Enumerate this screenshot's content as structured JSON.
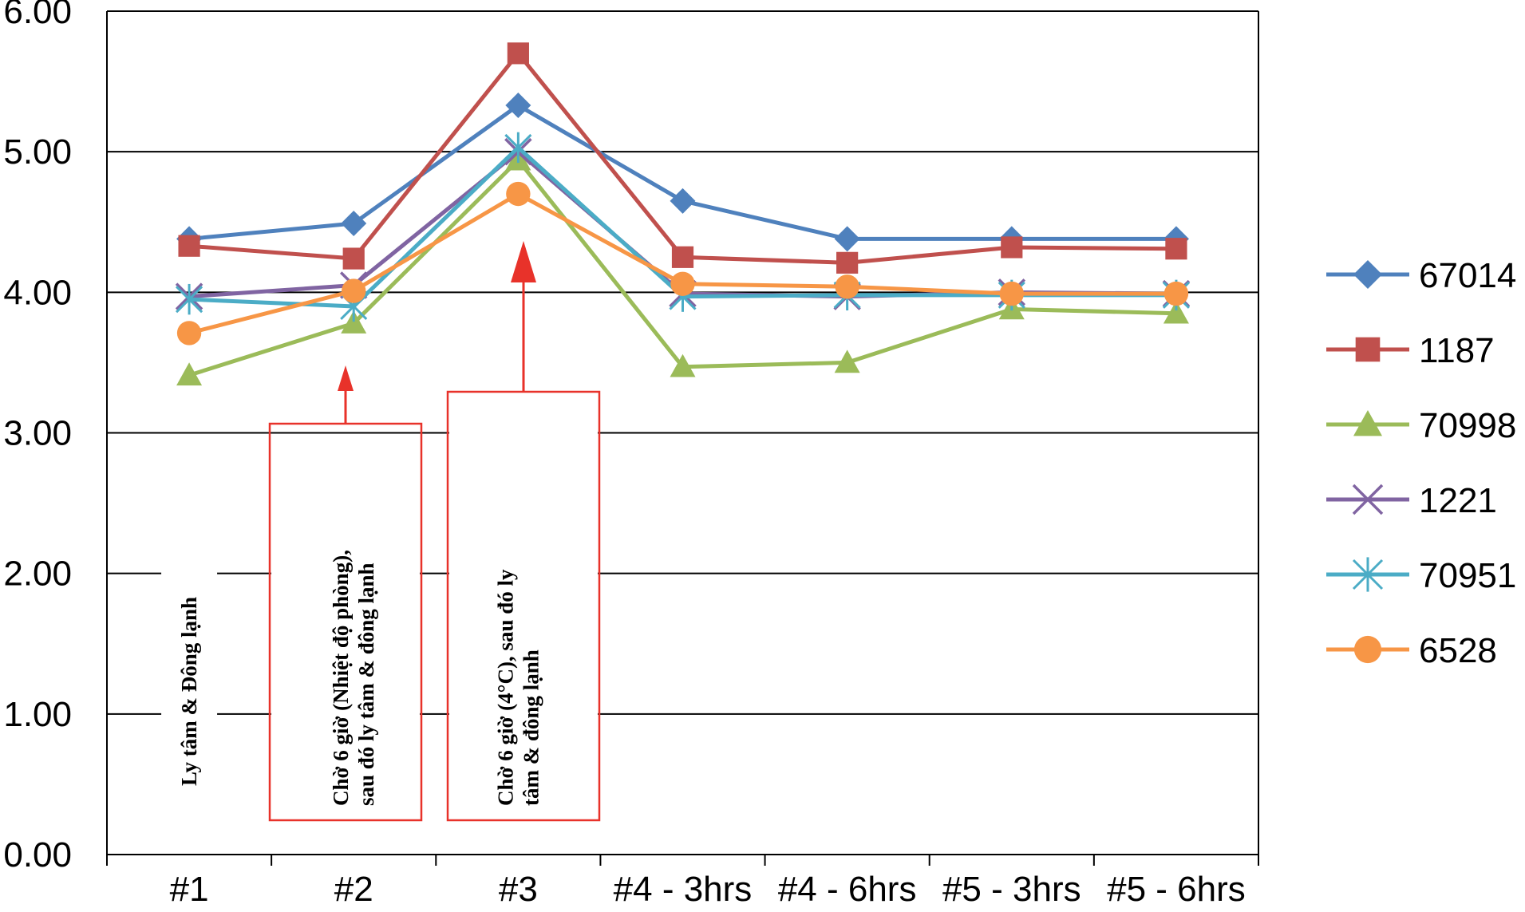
{
  "chart_data": {
    "type": "line",
    "categories": [
      "#1",
      "#2",
      "#3",
      "#4 - 3hrs",
      "#4 - 6hrs",
      "#5 - 3hrs",
      "#5 - 6hrs"
    ],
    "ylim": [
      0,
      6
    ],
    "yticks": [
      "0.00",
      "1.00",
      "2.00",
      "3.00",
      "4.00",
      "5.00",
      "6.00"
    ],
    "grid": true,
    "legend_position": "right",
    "series": [
      {
        "name": "67014",
        "color": "#4f81bd",
        "marker": "diamond",
        "values": [
          4.38,
          4.49,
          5.33,
          4.65,
          4.38,
          4.38,
          4.38
        ]
      },
      {
        "name": "1187",
        "color": "#c0504d",
        "marker": "square",
        "values": [
          4.33,
          4.24,
          5.7,
          4.25,
          4.21,
          4.32,
          4.31
        ]
      },
      {
        "name": "70998",
        "color": "#9bbb59",
        "marker": "triangle",
        "values": [
          3.41,
          3.78,
          4.94,
          3.47,
          3.5,
          3.88,
          3.85
        ]
      },
      {
        "name": "1221",
        "color": "#8064a2",
        "marker": "x",
        "values": [
          3.97,
          4.05,
          5.0,
          3.99,
          3.97,
          4.0,
          3.99
        ]
      },
      {
        "name": "70951",
        "color": "#4bacc6",
        "marker": "asterisk",
        "values": [
          3.95,
          3.9,
          5.03,
          3.97,
          3.98,
          3.98,
          3.98
        ]
      },
      {
        "name": "6528",
        "color": "#f79646",
        "marker": "circle",
        "values": [
          3.71,
          4.01,
          4.7,
          4.06,
          4.04,
          3.99,
          3.99
        ]
      }
    ],
    "annotations": [
      {
        "lines": [
          "Ly tâm & Đông lạnh"
        ],
        "boxed": false,
        "arrow": false
      },
      {
        "lines": [
          "Chờ 6 giờ (Nhiệt độ phòng),",
          "sau đó ly tâm & đông lạnh"
        ],
        "boxed": true,
        "arrow": true,
        "arrow_color": "#e8322a"
      },
      {
        "lines": [
          "Chờ 6 giờ (4°C), sau đó ly",
          "tâm & đông lạnh"
        ],
        "boxed": true,
        "arrow": true,
        "arrow_color": "#e8322a"
      }
    ]
  }
}
